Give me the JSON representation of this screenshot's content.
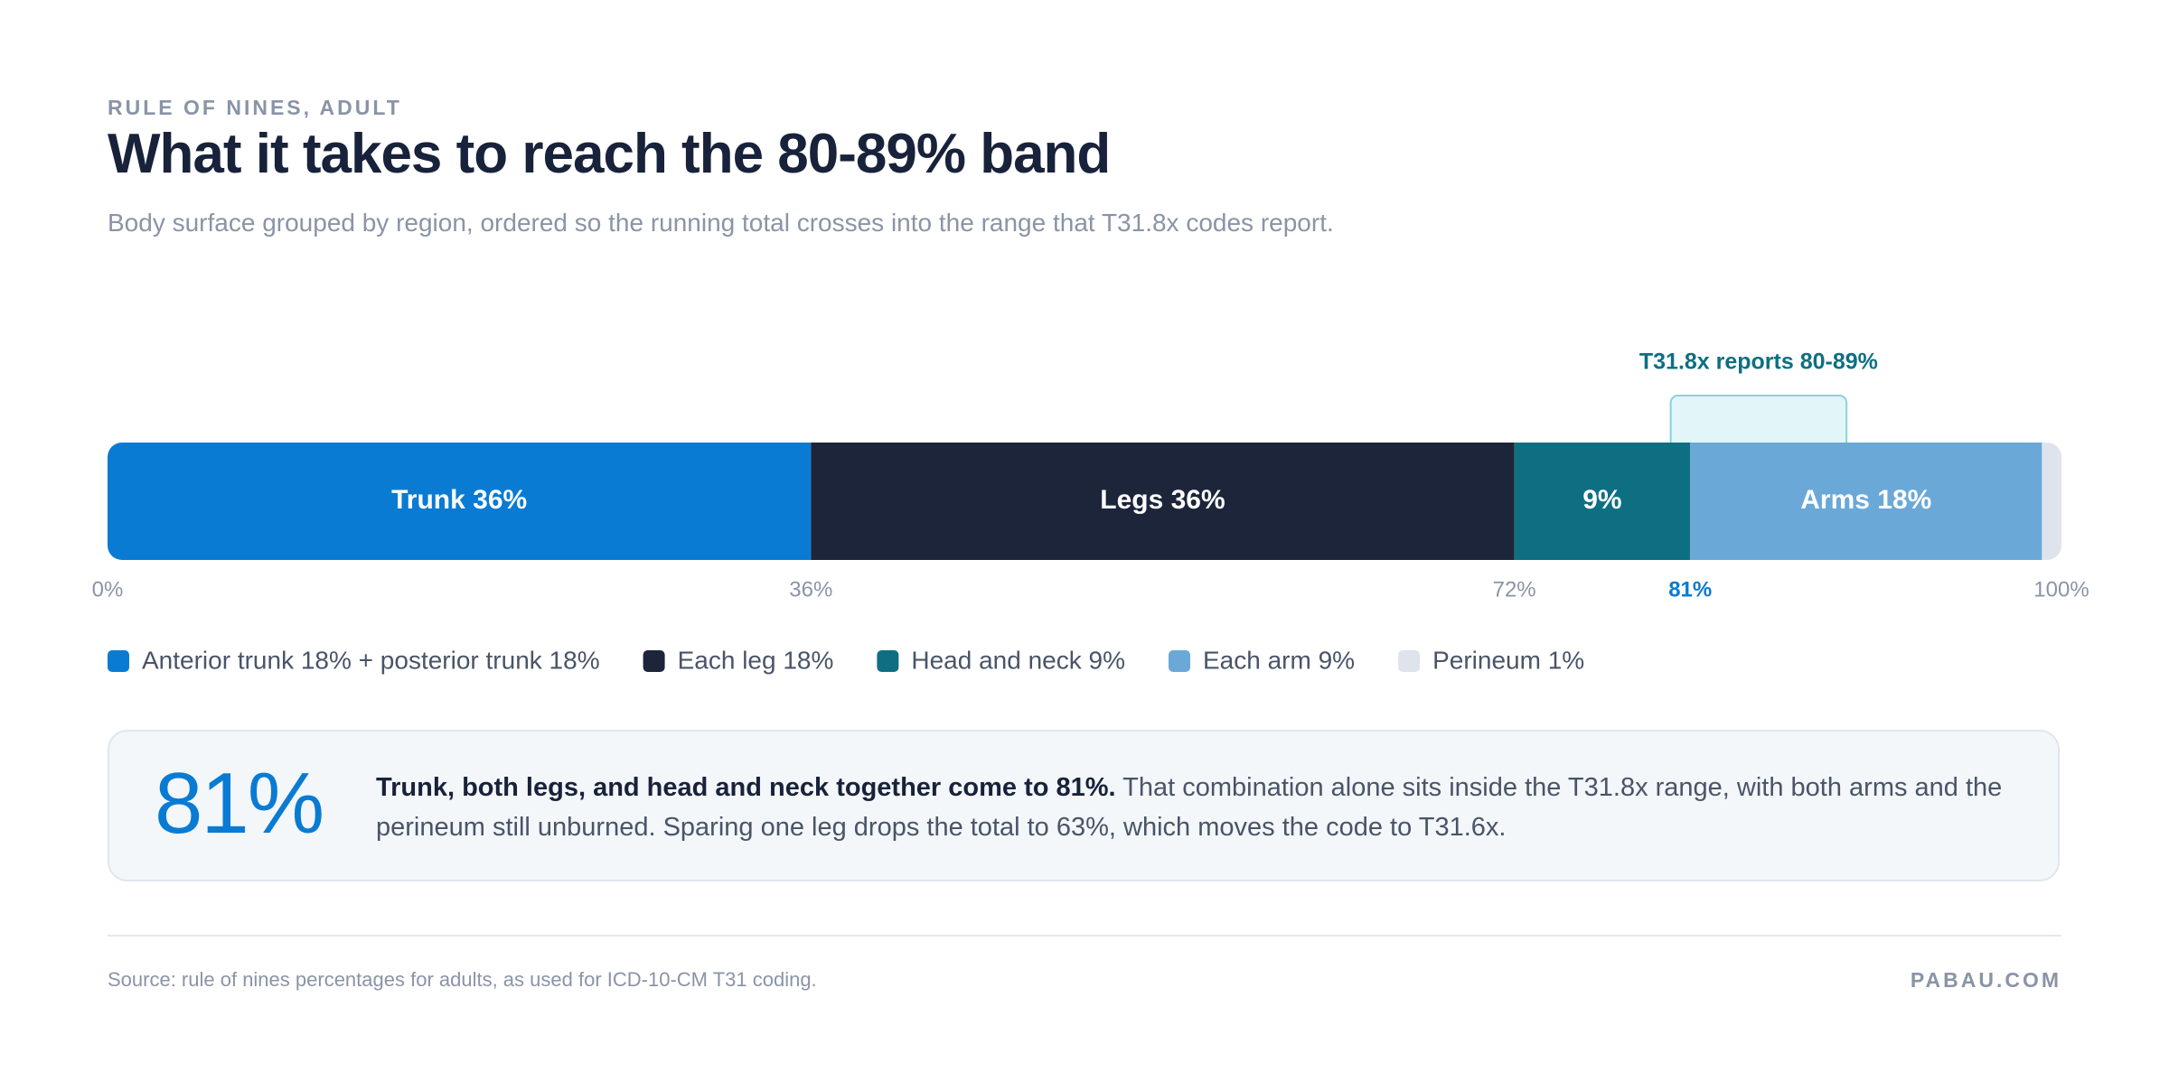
{
  "eyebrow": "RULE OF NINES, ADULT",
  "chart_data": {
    "type": "bar",
    "orientation": "horizontal",
    "stacked": true,
    "title": "What it takes to reach the 80-89% band",
    "subtitle": "Body surface grouped by region, ordered so the running total crosses into the range that T31.8x codes report.",
    "series": [
      {
        "name": "Anterior trunk 18% + posterior trunk 18%",
        "color": "#0a7bd3",
        "values": [
          36
        ],
        "value_labels": [
          "Trunk 36%"
        ]
      },
      {
        "name": "Each leg 18%",
        "color": "#1c2539",
        "values": [
          36
        ],
        "value_labels": [
          "Legs 36%"
        ]
      },
      {
        "name": "Head and neck 9%",
        "color": "#0e6f83",
        "values": [
          9
        ],
        "value_labels": [
          "9%"
        ]
      },
      {
        "name": "Each arm 9%",
        "color": "#6aa8d8",
        "values": [
          18
        ],
        "value_labels": [
          "Arms 18%"
        ]
      },
      {
        "name": "Perineum 1%",
        "color": "#dfe3ec",
        "values": [
          1
        ]
      }
    ],
    "xlim": [
      0,
      100
    ],
    "xticks": [
      {
        "value": 0,
        "label": "0%"
      },
      {
        "value": 36,
        "label": "36%"
      },
      {
        "value": 72,
        "label": "72%"
      },
      {
        "value": 81,
        "label": "81%"
      },
      {
        "value": 100,
        "label": "100%"
      }
    ],
    "band": {
      "label": "T31.8x reports 80-89%",
      "range": [
        80,
        89
      ],
      "color": "#0e6f83"
    },
    "legend": "bottom-left"
  },
  "callout": {
    "figure": "81%",
    "bold": "Trunk, both legs, and head and neck together come to 81%.",
    "text": "That combination alone sits inside the T31.8x range, with both arms and the perineum still unburned. Sparing one leg drops the total to 63%, which moves the code to T31.6x."
  },
  "footer": {
    "source": "Source: rule of nines percentages for adults, as used for ICD-10-CM T31 coding.",
    "brand": "PABAU.COM"
  }
}
